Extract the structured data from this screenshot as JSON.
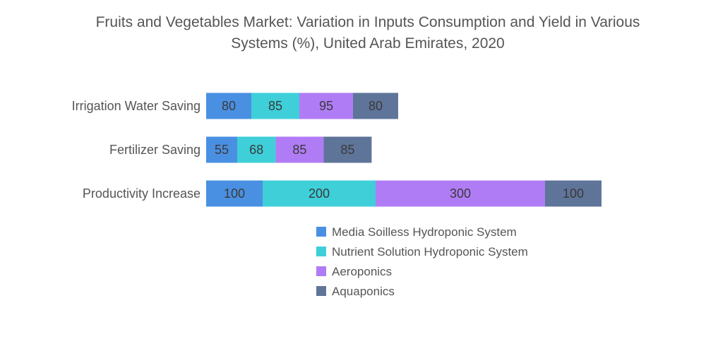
{
  "chart_data": {
    "type": "bar",
    "orientation": "horizontal",
    "stacked": true,
    "title": "Fruits and Vegetables Market: Variation in Inputs Consumption and Yield in Various Systems (%), United Arab Emirates, 2020",
    "title_lines": [
      "Fruits and Vegetables Market: Variation in Inputs Consumption and Yield in Various",
      "Systems (%), United Arab Emirates, 2020"
    ],
    "categories": [
      "Irrigation Water Saving",
      "Fertilizer Saving",
      "Productivity Increase"
    ],
    "series": [
      {
        "name": "Media Soilless Hydroponic System",
        "color": "#4a90e2",
        "values": [
          80,
          55,
          100
        ]
      },
      {
        "name": "Nutrient Solution Hydroponic System",
        "color": "#3ecfd9",
        "values": [
          85,
          68,
          200
        ]
      },
      {
        "name": "Aeroponics",
        "color": "#b07cf5",
        "values": [
          95,
          85,
          300
        ]
      },
      {
        "name": "Aquaponics",
        "color": "#5f7499",
        "values": [
          80,
          85,
          100
        ]
      }
    ],
    "xlabel": "",
    "ylabel": "",
    "grid": false,
    "legend_position": "bottom"
  }
}
